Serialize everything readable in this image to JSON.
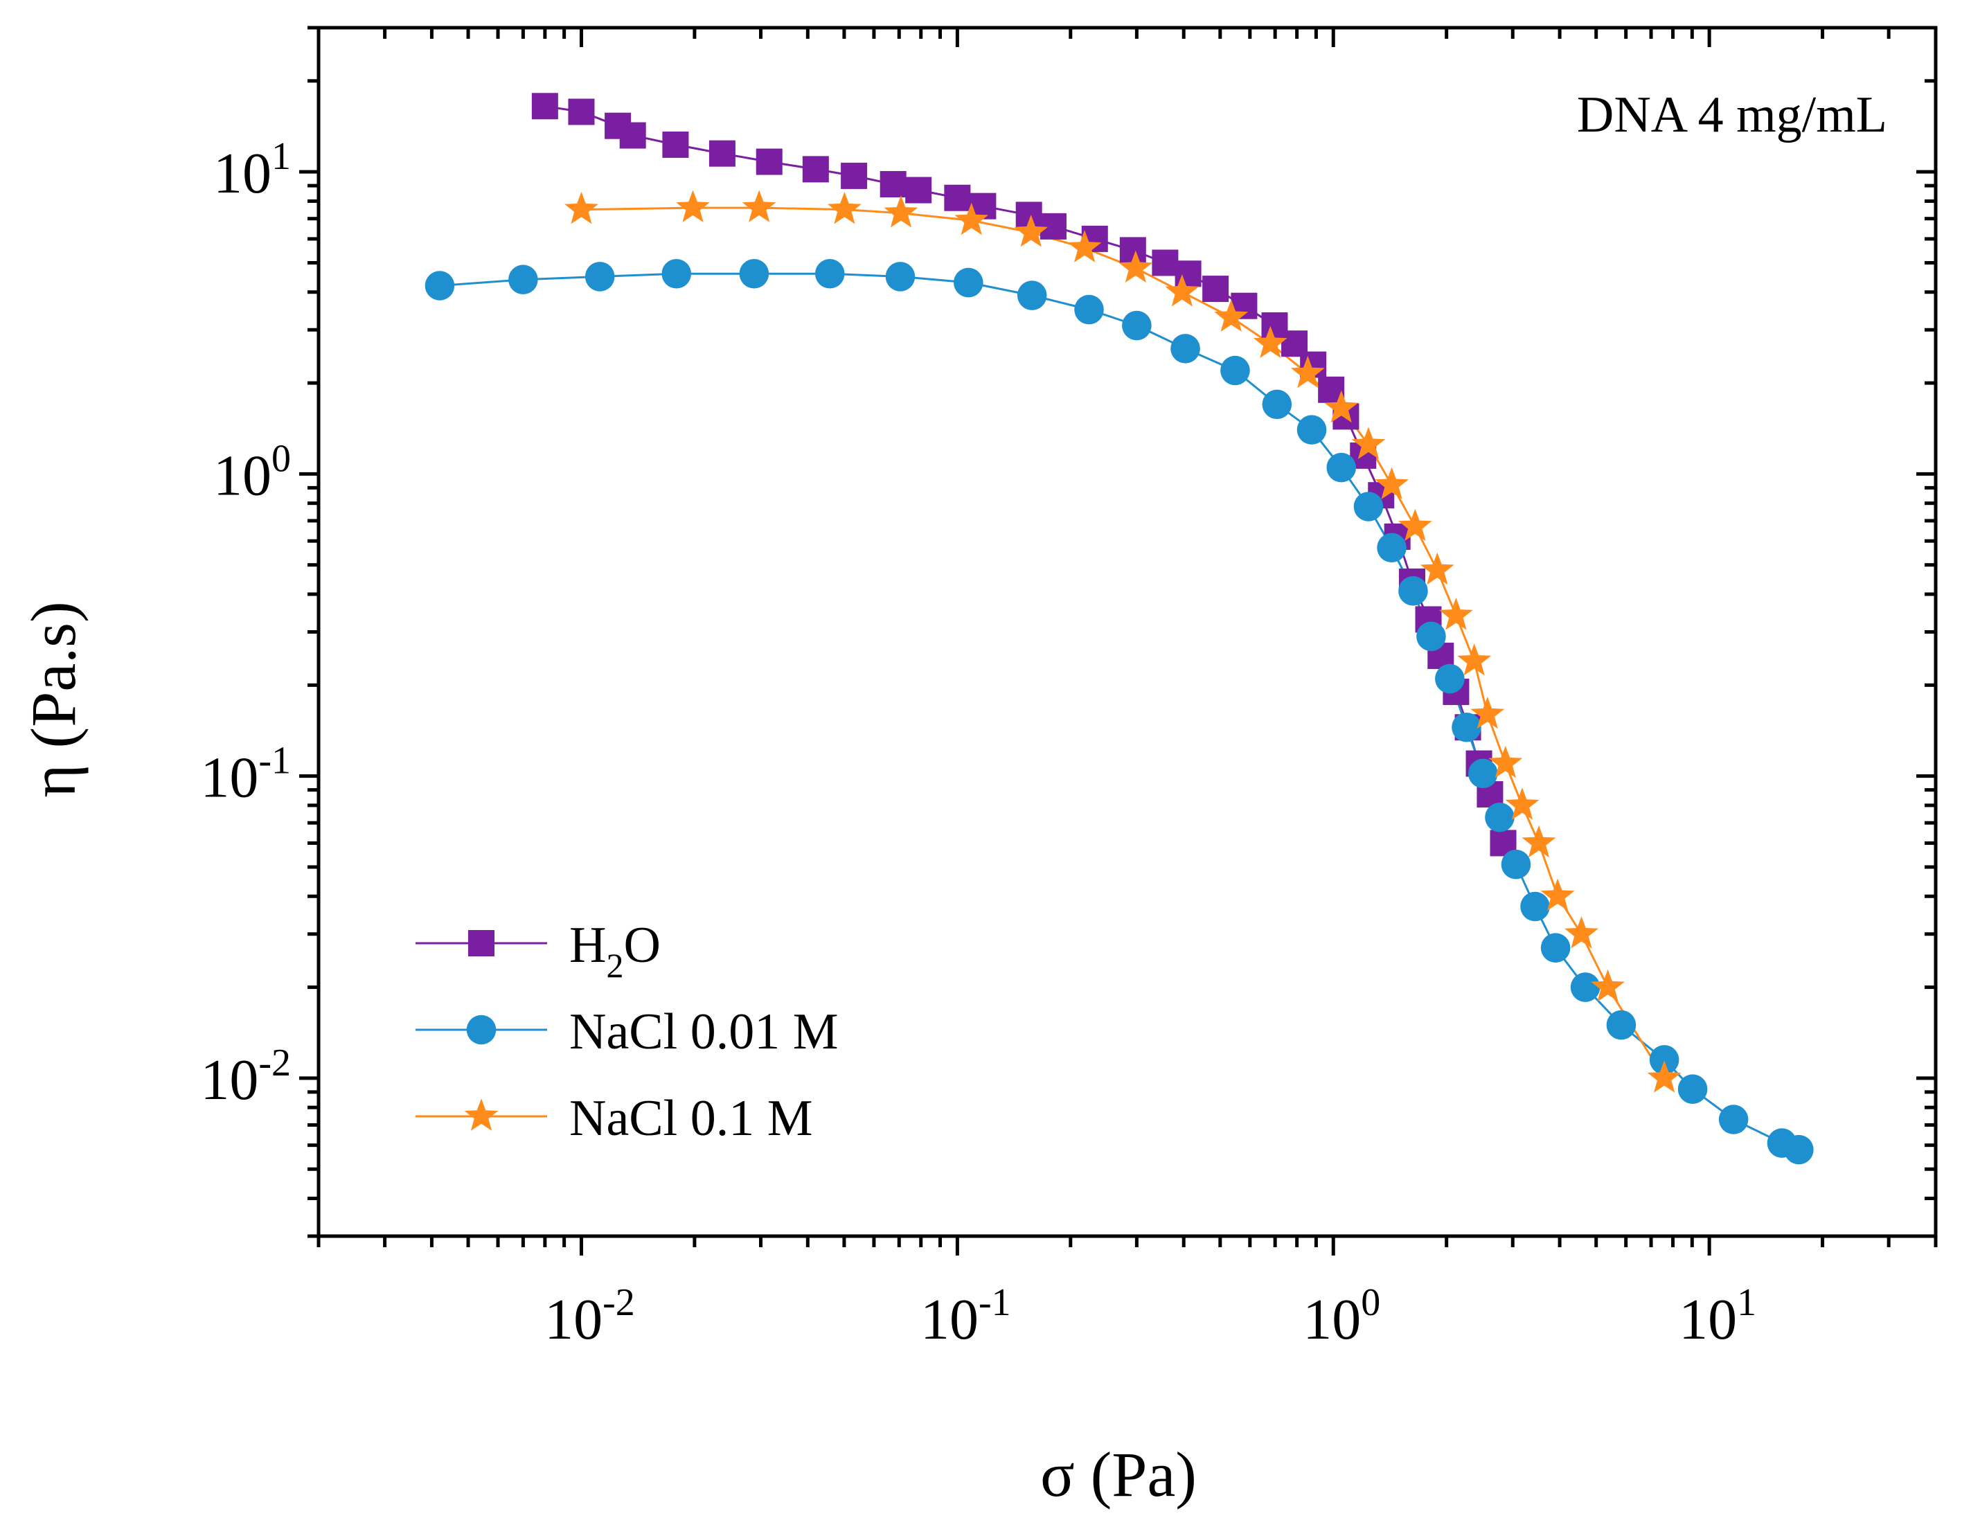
{
  "chart_data": {
    "type": "scatter",
    "annotation": "DNA 4 mg/mL",
    "xlabel": "σ (Pa)",
    "ylabel": "η (Pa.s)",
    "xscale": "log",
    "yscale": "log",
    "xlim": [
      0.002,
      40
    ],
    "ylim": [
      0.003,
      30
    ],
    "x_ticks": [
      {
        "value": 0.01,
        "base": "10",
        "exp": "-2"
      },
      {
        "value": 0.1,
        "base": "10",
        "exp": "-1"
      },
      {
        "value": 1,
        "base": "10",
        "exp": "0"
      },
      {
        "value": 10,
        "base": "10",
        "exp": "1"
      }
    ],
    "y_ticks": [
      {
        "value": 0.01,
        "base": "10",
        "exp": "-2"
      },
      {
        "value": 0.1,
        "base": "10",
        "exp": "-1"
      },
      {
        "value": 1,
        "base": "10",
        "exp": "0"
      },
      {
        "value": 10,
        "base": "10",
        "exp": "1"
      }
    ],
    "grid": false,
    "legend_position": "bottom-left",
    "series": [
      {
        "name": "H₂O",
        "legend_main": "H",
        "legend_sub": "2",
        "legend_tail": "O",
        "marker": "square",
        "color": "#7B1FA2",
        "points": [
          [
            0.008,
            16.5
          ],
          [
            0.01,
            15.8
          ],
          [
            0.0125,
            14.2
          ],
          [
            0.0137,
            13.2
          ],
          [
            0.0178,
            12.3
          ],
          [
            0.0237,
            11.5
          ],
          [
            0.0316,
            10.8
          ],
          [
            0.042,
            10.2
          ],
          [
            0.0531,
            9.7
          ],
          [
            0.0675,
            9.1
          ],
          [
            0.0788,
            8.7
          ],
          [
            0.1,
            8.2
          ],
          [
            0.117,
            7.7
          ],
          [
            0.155,
            7.2
          ],
          [
            0.18,
            6.6
          ],
          [
            0.232,
            6.0
          ],
          [
            0.293,
            5.5
          ],
          [
            0.357,
            5.0
          ],
          [
            0.411,
            4.6
          ],
          [
            0.486,
            4.1
          ],
          [
            0.579,
            3.6
          ],
          [
            0.698,
            3.1
          ],
          [
            0.788,
            2.7
          ],
          [
            0.884,
            2.3
          ],
          [
            0.987,
            1.9
          ],
          [
            1.08,
            1.55
          ],
          [
            1.2,
            1.15
          ],
          [
            1.34,
            0.85
          ],
          [
            1.48,
            0.62
          ],
          [
            1.62,
            0.44
          ],
          [
            1.79,
            0.33
          ],
          [
            1.93,
            0.25
          ],
          [
            2.12,
            0.19
          ],
          [
            2.28,
            0.145
          ],
          [
            2.44,
            0.11
          ],
          [
            2.61,
            0.087
          ],
          [
            2.83,
            0.06
          ]
        ]
      },
      {
        "name": "NaCl 0.01 M",
        "marker": "circle",
        "color": "#1E90D0",
        "points": [
          [
            0.0042,
            4.2
          ],
          [
            0.007,
            4.4
          ],
          [
            0.0112,
            4.5
          ],
          [
            0.0179,
            4.6
          ],
          [
            0.0288,
            4.6
          ],
          [
            0.0458,
            4.6
          ],
          [
            0.0705,
            4.5
          ],
          [
            0.107,
            4.3
          ],
          [
            0.158,
            3.9
          ],
          [
            0.224,
            3.5
          ],
          [
            0.3,
            3.1
          ],
          [
            0.404,
            2.6
          ],
          [
            0.548,
            2.2
          ],
          [
            0.708,
            1.7
          ],
          [
            0.876,
            1.4
          ],
          [
            1.05,
            1.05
          ],
          [
            1.24,
            0.78
          ],
          [
            1.43,
            0.57
          ],
          [
            1.63,
            0.41
          ],
          [
            1.82,
            0.29
          ],
          [
            2.04,
            0.21
          ],
          [
            2.26,
            0.145
          ],
          [
            2.5,
            0.102
          ],
          [
            2.77,
            0.073
          ],
          [
            3.06,
            0.051
          ],
          [
            3.44,
            0.037
          ],
          [
            3.9,
            0.027
          ],
          [
            4.68,
            0.02
          ],
          [
            5.83,
            0.015
          ],
          [
            7.59,
            0.0115
          ],
          [
            9.03,
            0.0092
          ],
          [
            11.6,
            0.0073
          ],
          [
            15.6,
            0.0061
          ],
          [
            17.3,
            0.0058
          ]
        ]
      },
      {
        "name": "NaCl 0.1 M",
        "marker": "star",
        "color": "#FF8C1A",
        "points": [
          [
            0.01,
            7.5
          ],
          [
            0.0198,
            7.6
          ],
          [
            0.0297,
            7.6
          ],
          [
            0.0501,
            7.5
          ],
          [
            0.0708,
            7.3
          ],
          [
            0.109,
            6.9
          ],
          [
            0.157,
            6.3
          ],
          [
            0.218,
            5.6
          ],
          [
            0.298,
            4.8
          ],
          [
            0.396,
            4.0
          ],
          [
            0.535,
            3.3
          ],
          [
            0.68,
            2.7
          ],
          [
            0.855,
            2.15
          ],
          [
            1.05,
            1.65
          ],
          [
            1.24,
            1.25
          ],
          [
            1.43,
            0.92
          ],
          [
            1.65,
            0.67
          ],
          [
            1.89,
            0.48
          ],
          [
            2.12,
            0.34
          ],
          [
            2.37,
            0.24
          ],
          [
            2.57,
            0.16
          ],
          [
            2.87,
            0.11
          ],
          [
            3.18,
            0.08
          ],
          [
            3.52,
            0.06
          ],
          [
            3.95,
            0.04
          ],
          [
            4.57,
            0.03
          ],
          [
            5.37,
            0.02
          ],
          [
            7.59,
            0.01
          ]
        ]
      }
    ]
  }
}
